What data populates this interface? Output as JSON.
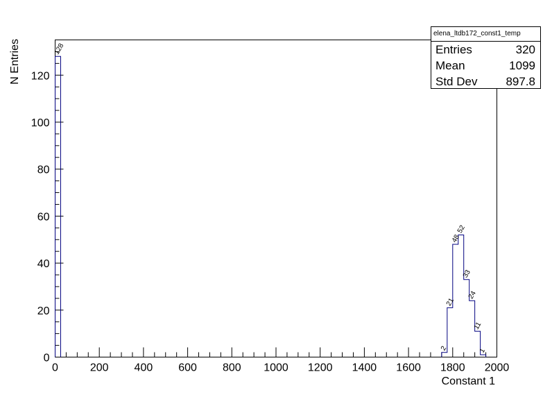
{
  "chart_data": {
    "type": "histogram",
    "title": "",
    "xlabel": "Constant 1",
    "ylabel": "N Entries",
    "xlim": [
      0,
      2000
    ],
    "ylim": [
      0,
      135
    ],
    "bin_width": 25,
    "x_ticks": [
      0,
      200,
      400,
      600,
      800,
      1000,
      1200,
      1400,
      1600,
      1800,
      2000
    ],
    "y_ticks": [
      0,
      20,
      40,
      60,
      80,
      100,
      120
    ],
    "bins": [
      {
        "x0": 0,
        "x1": 25,
        "value": 128,
        "label": "128"
      },
      {
        "x0": 1750,
        "x1": 1775,
        "value": 2,
        "label": "2"
      },
      {
        "x0": 1775,
        "x1": 1800,
        "value": 21,
        "label": "21"
      },
      {
        "x0": 1800,
        "x1": 1825,
        "value": 48,
        "label": "48"
      },
      {
        "x0": 1825,
        "x1": 1850,
        "value": 52,
        "label": "52"
      },
      {
        "x0": 1850,
        "x1": 1875,
        "value": 33,
        "label": "33"
      },
      {
        "x0": 1875,
        "x1": 1900,
        "value": 24,
        "label": "24"
      },
      {
        "x0": 1900,
        "x1": 1925,
        "value": 11,
        "label": "11"
      },
      {
        "x0": 1925,
        "x1": 1950,
        "value": 1,
        "label": "1"
      }
    ],
    "line_color": "#000080",
    "grid": false,
    "legend": "none",
    "stats": {
      "name": "elena_ltdb172_const1_temp",
      "rows": [
        {
          "label": "Entries",
          "value": "320"
        },
        {
          "label": "Mean",
          "value": "1099"
        },
        {
          "label": "Std Dev",
          "value": "897.8"
        }
      ]
    }
  }
}
